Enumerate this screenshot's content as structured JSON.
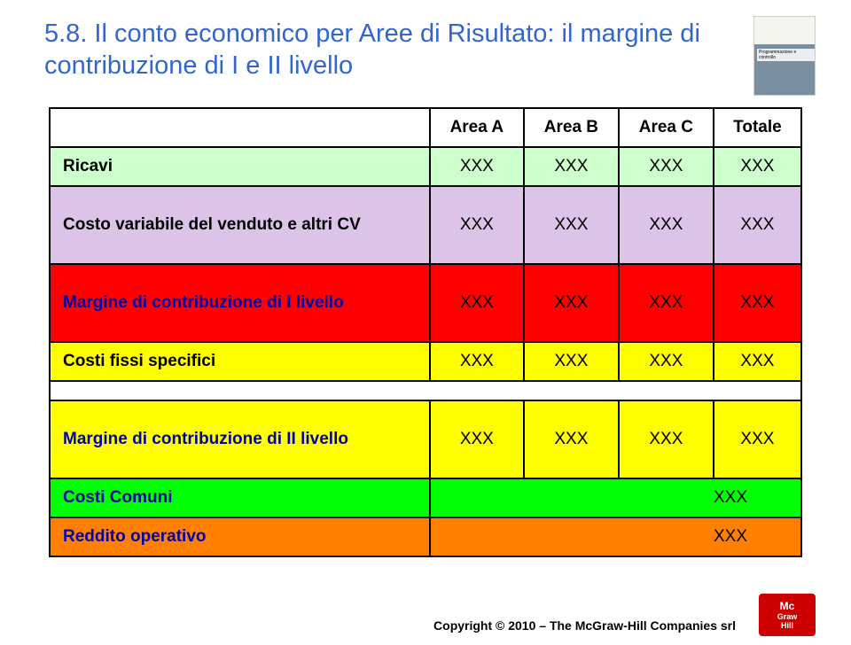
{
  "title": "5.8. Il conto economico per Aree di Risultato: il margine di contribuzione di I e II livello",
  "book": {
    "author": "",
    "title": "Programmazione e controllo"
  },
  "table": {
    "headers": [
      "",
      "Area A",
      "Area B",
      "Area C",
      "Totale"
    ],
    "rows": {
      "ricavi": {
        "label": "Ricavi",
        "a": "XXX",
        "b": "XXX",
        "c": "XXX",
        "t": "XXX",
        "bg": "#ccffcc"
      },
      "costo_var": {
        "label": "Costo variabile del venduto e altri CV",
        "a": "XXX",
        "b": "XXX",
        "c": "XXX",
        "t": "XXX",
        "bg": "#dcc3e8"
      },
      "margine1": {
        "label": "Margine di contribuzione di I livello",
        "a": "XXX",
        "b": "XXX",
        "c": "XXX",
        "t": "XXX",
        "bg": "#ff0000",
        "label_color": "#0000aa"
      },
      "costi_fissi": {
        "label": "Costi fissi specifici",
        "a": "XXX",
        "b": "XXX",
        "c": "XXX",
        "t": "XXX",
        "bg": "#ffff00"
      },
      "margine2": {
        "label": "Margine di contribuzione di II livello",
        "a": "XXX",
        "b": "XXX",
        "c": "XXX",
        "t": "XXX",
        "bg": "#ffff00",
        "label_color": "#0000aa"
      },
      "costi_comuni": {
        "label": "Costi Comuni",
        "span_value": "XXX",
        "bg": "#00ff00",
        "label_color": "#0000aa"
      },
      "reddito": {
        "label": "Reddito operativo",
        "span_value": "XXX",
        "bg": "#ff8000",
        "label_color": "#0000aa"
      }
    }
  },
  "copyright": "Copyright © 2010 – The McGraw-Hill Companies srl",
  "logo": {
    "top": "Mc",
    "mid": "Graw",
    "bot": "Hill"
  },
  "colors": {
    "title": "#3366cc",
    "border": "#000000",
    "label_blue": "#0000aa"
  },
  "fonts": {
    "title_size": 29,
    "cell_size": 19,
    "family": "Arial"
  }
}
